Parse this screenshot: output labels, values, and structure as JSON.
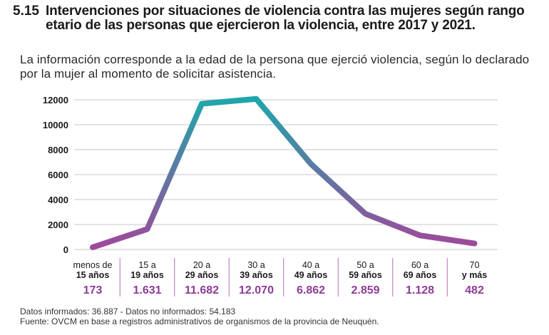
{
  "header": {
    "number": "5.15",
    "title": "Intervenciones por situaciones de violencia contra las mujeres según rango etario de las personas que ejercieron la violencia, entre 2017 y 2021.",
    "subtitle": "La información corresponde a la edad de la persona que ejerció violencia, según lo declarado por la mujer al momento de solicitar asistencia."
  },
  "chart_data": {
    "type": "line",
    "title": "Intervenciones por situaciones de violencia contra las mujeres según rango etario de las personas que ejercieron la violencia, entre 2017 y 2021.",
    "xlabel": "",
    "ylabel": "",
    "ylim": [
      0,
      12000
    ],
    "yticks": [
      "0",
      "2000",
      "4000",
      "6000",
      "8000",
      "10000",
      "12000"
    ],
    "grid": true,
    "categories": [
      {
        "line1": "menos de",
        "line2": "15 años",
        "value_label": "173"
      },
      {
        "line1": "15 a",
        "line2": "19 años",
        "value_label": "1.631"
      },
      {
        "line1": "20 a",
        "line2": "29 años",
        "value_label": "11.682"
      },
      {
        "line1": "30 a",
        "line2": "39 años",
        "value_label": "12.070"
      },
      {
        "line1": "40 a",
        "line2": "49 años",
        "value_label": "6.862"
      },
      {
        "line1": "50 a",
        "line2": "59 años",
        "value_label": "2.859"
      },
      {
        "line1": "60 a",
        "line2": "69 años",
        "value_label": "1.128"
      },
      {
        "line1": "70",
        "line2": "y más",
        "value_label": "482"
      }
    ],
    "series": [
      {
        "name": "Intervenciones",
        "values": [
          173,
          1631,
          11682,
          12070,
          6862,
          2859,
          1128,
          482
        ]
      }
    ],
    "colors": {
      "line_low": "#a0489a",
      "line_high": "#1fa6ab",
      "value_text": "#8e3b97",
      "grid": "#c9c6ce",
      "separator": "#b06fb0"
    }
  },
  "footer": {
    "line1": "Datos informados: 36.887 - Datos no informados: 54.183",
    "line2": "Fuente: OVCM en base a registros administrativos de organismos de la provincia de Neuquén."
  }
}
